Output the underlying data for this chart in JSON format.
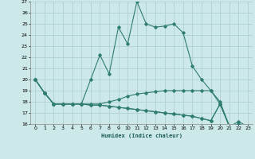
{
  "xlabel": "Humidex (Indice chaleur)",
  "xlim": [
    -0.5,
    23.5
  ],
  "ylim": [
    16,
    27
  ],
  "yticks": [
    16,
    17,
    18,
    19,
    20,
    21,
    22,
    23,
    24,
    25,
    26,
    27
  ],
  "xticks": [
    0,
    1,
    2,
    3,
    4,
    5,
    6,
    7,
    8,
    9,
    10,
    11,
    12,
    13,
    14,
    15,
    16,
    17,
    18,
    19,
    20,
    21,
    22,
    23
  ],
  "background_color": "#cce8e8",
  "grid_color": "#b0d0d0",
  "line_color": "#2e7d6e",
  "series": [
    [
      20,
      18.8,
      17.8,
      17.8,
      17.8,
      17.8,
      20.0,
      22.2,
      20.5,
      24.7,
      23.2,
      27.0,
      25.0,
      24.7,
      24.8,
      25.0,
      24.2,
      21.2,
      20.0,
      19.0,
      18.0,
      15.8,
      16.2,
      15.8
    ],
    [
      20,
      18.8,
      17.8,
      17.8,
      17.8,
      17.8,
      17.8,
      17.8,
      18.0,
      18.2,
      18.5,
      18.7,
      18.8,
      18.9,
      19.0,
      19.0,
      19.0,
      19.0,
      19.0,
      19.0,
      17.8,
      15.8,
      16.0,
      15.8
    ],
    [
      20,
      18.8,
      17.8,
      17.8,
      17.8,
      17.8,
      17.7,
      17.7,
      17.6,
      17.5,
      17.4,
      17.3,
      17.2,
      17.1,
      17.0,
      16.9,
      16.8,
      16.7,
      16.5,
      16.3,
      17.8,
      15.8,
      15.9,
      15.7
    ],
    [
      20,
      18.8,
      17.8,
      17.8,
      17.8,
      17.8,
      17.7,
      17.7,
      17.6,
      17.5,
      17.4,
      17.3,
      17.2,
      17.1,
      17.0,
      16.9,
      16.8,
      16.7,
      16.5,
      16.3,
      17.8,
      15.8,
      15.9,
      15.6
    ]
  ]
}
